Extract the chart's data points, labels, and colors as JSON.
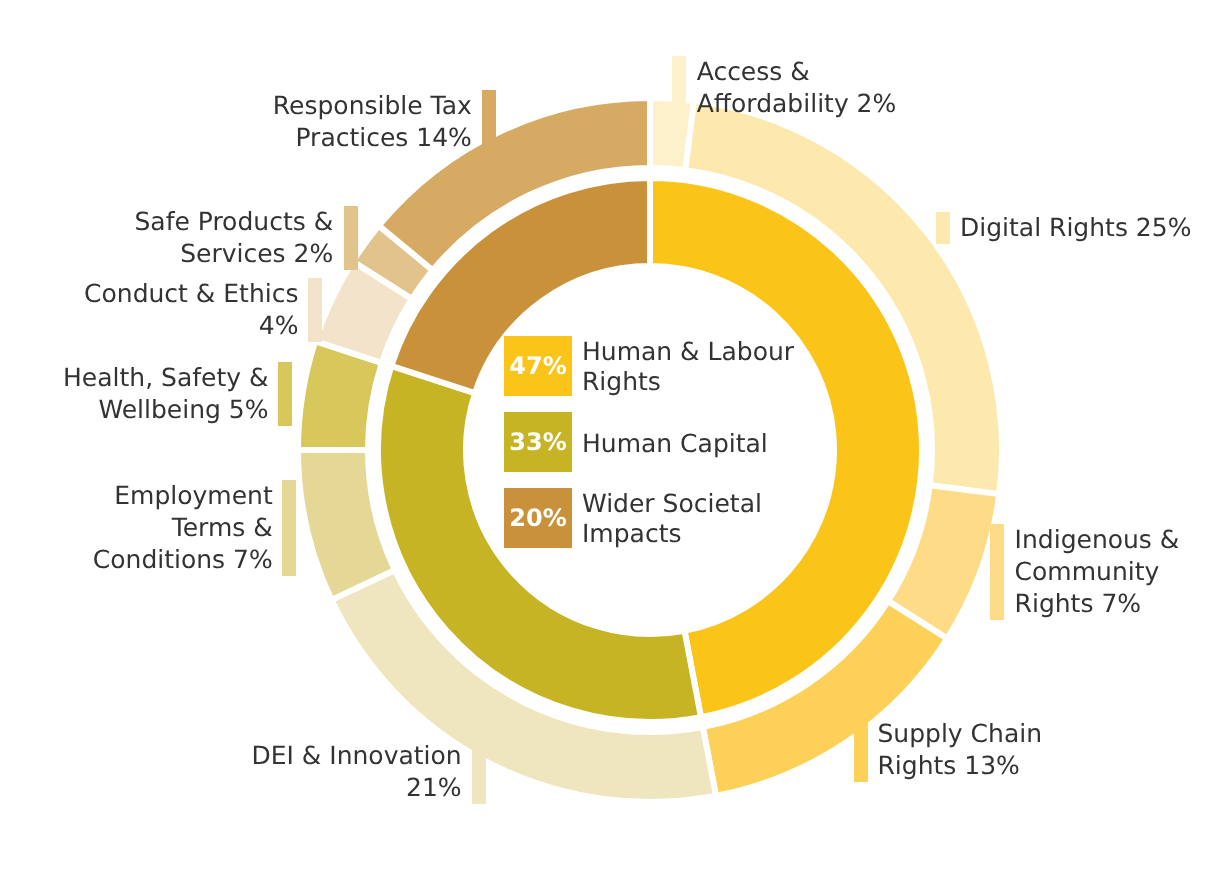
{
  "chart_data": [
    {
      "type": "donut",
      "legend": "center",
      "categories": [
        "Human & Labour Rights",
        "Human Capital",
        "Wider Societal Impacts"
      ],
      "values": [
        47,
        33,
        20
      ],
      "value_labels": [
        "47%",
        "33%",
        "20%"
      ],
      "colors": [
        "#fbc418",
        "#c6b425",
        "#c8913a"
      ]
    },
    {
      "type": "donut",
      "categories": [
        "Access & Affordability",
        "Digital Rights",
        "Indigenous & Community Rights",
        "Supply Chain Rights",
        "DEI & Innovation",
        "Employment Terms & Conditions",
        "Health, Safety & Wellbeing",
        "Conduct & Ethics",
        "Safe Products & Services",
        "Responsible Tax Practices"
      ],
      "values": [
        2,
        25,
        7,
        13,
        21,
        7,
        5,
        4,
        2,
        14
      ],
      "value_labels": [
        "2%",
        "25%",
        "7%",
        "13%",
        "21%",
        "7%",
        "5%",
        "4%",
        "2%",
        "14%"
      ],
      "colors": [
        "#fdf1cc",
        "#fde8ad",
        "#fedc87",
        "#fdd157",
        "#efe5bf",
        "#e5d795",
        "#d8c75a",
        "#f3e3ca",
        "#e2c38c",
        "#d6aa63"
      ]
    }
  ]
}
